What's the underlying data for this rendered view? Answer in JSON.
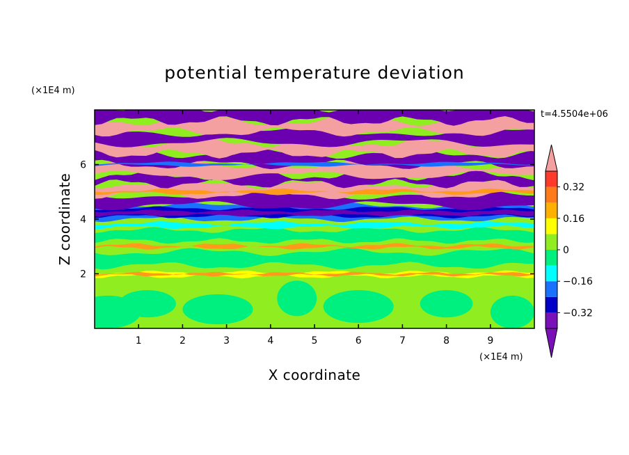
{
  "chart_data": {
    "type": "heatmap",
    "title": "potential temperature deviation",
    "xlabel": "X coordinate",
    "ylabel": "Z coordinate",
    "x_unit": "(×1E4 m)",
    "y_unit": "(×1E4 m)",
    "time_label": "t=4.5504e+06",
    "xlim": [
      0,
      10
    ],
    "ylim": [
      0,
      8
    ],
    "x_ticks": [
      1,
      2,
      3,
      4,
      5,
      6,
      7,
      8,
      9
    ],
    "y_ticks": [
      2,
      4,
      6
    ],
    "x_tick_labels": [
      "1",
      "2",
      "3",
      "4",
      "5",
      "6",
      "7",
      "8",
      "9"
    ],
    "y_tick_labels": [
      "2",
      "4",
      "6"
    ],
    "colorbar": {
      "levels": [
        -0.4,
        -0.32,
        -0.24,
        -0.16,
        -0.08,
        0,
        0.08,
        0.16,
        0.24,
        0.32,
        0.4
      ],
      "labels": [
        "0.32",
        "0.16",
        "0",
        "−0.16",
        "−0.32"
      ],
      "label_values": [
        0.32,
        0.16,
        0,
        -0.16,
        -0.32
      ],
      "colors": [
        "#f4a0a0",
        "#ff3a2a",
        "#ff7a1a",
        "#ffb000",
        "#ffff00",
        "#90ee20",
        "#00f080",
        "#00ffff",
        "#1a70ff",
        "#0000c8",
        "#6a00b0",
        "#7a10b8"
      ],
      "extend": "both"
    },
    "regions": [
      {
        "z_range": [
          0,
          2
        ],
        "value": 0.0,
        "description": "near-neutral lower layer, alternating green and light green"
      },
      {
        "z_range": [
          2,
          4
        ],
        "value": 0.04,
        "description": "mostly light green with thin warm filaments near z=2 and z=3"
      },
      {
        "z_range": [
          4,
          4.5
        ],
        "value": -0.3,
        "description": "strongly negative (blue/purple) band"
      },
      {
        "z_range": [
          4.5,
          8
        ],
        "value": 0.4,
        "description": "alternating strong positive (pink) and strong negative (purple) layers"
      }
    ]
  }
}
